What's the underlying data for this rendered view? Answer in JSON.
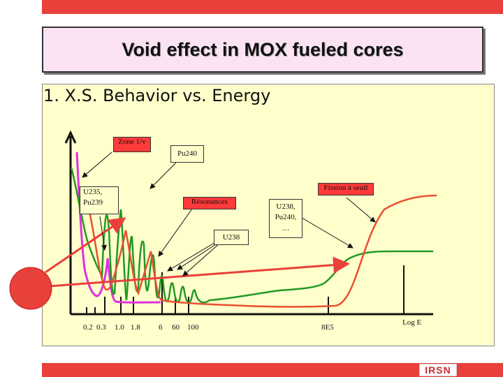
{
  "title": "Void effect in MOX fueled cores",
  "subtitle": "1. X.S. Behavior vs. Energy",
  "labels": {
    "zone": "Zone 1/v",
    "pu240": "Pu240",
    "fission": "Fission à seuil",
    "u235_line1": "U235,",
    "u235_line2": "Pu239",
    "resonances": "Résonances",
    "u238": "U238",
    "u238b_line1": "U238,",
    "u238b_line2": "Pu240,",
    "u238b_line3": "…"
  },
  "axis_ticks": [
    "0.2",
    "0.3",
    "1.0",
    "1.8",
    "6",
    "60",
    "100",
    "8E5",
    "Log E"
  ],
  "logo": "IRSN",
  "colors": {
    "accent": "#e8403a",
    "magenta_curve": "#e030e0",
    "green_curve": "#229922",
    "orange_curve": "#e85030",
    "box_fill": "#ffffcc",
    "title_fill": "#fbe3f4"
  }
}
